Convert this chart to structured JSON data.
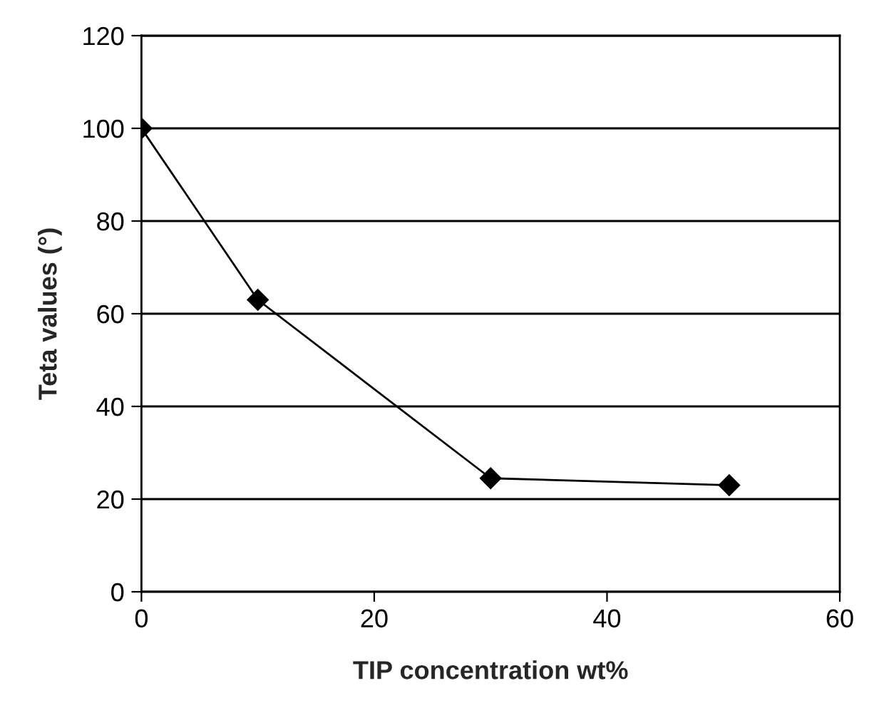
{
  "chart_data": {
    "type": "line",
    "xlabel": "TIP concentration wt%",
    "ylabel": "Teta values (°)",
    "series": [
      {
        "color": "#000000",
        "x": [
          0,
          10,
          30,
          50.5
        ],
        "values": [
          100,
          63,
          24.5,
          23
        ]
      }
    ],
    "marker": "diamond",
    "line_style": "solid",
    "grid": "y",
    "xlim": [
      0,
      60
    ],
    "xticks": [
      0,
      20,
      40,
      60
    ],
    "ylim": [
      0,
      120
    ],
    "yticks": [
      0,
      20,
      40,
      60,
      80,
      100,
      120
    ]
  }
}
